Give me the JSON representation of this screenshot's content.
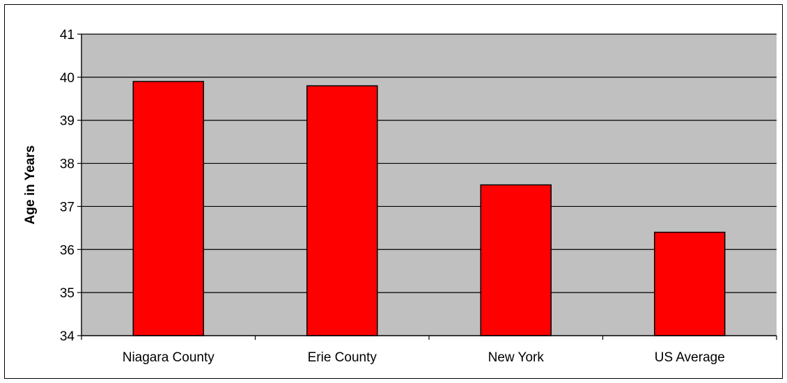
{
  "chart_data": {
    "type": "bar",
    "title": "",
    "xlabel": "",
    "ylabel": "Age in Years",
    "categories": [
      "Niagara County",
      "Erie County",
      "New York",
      "US Average"
    ],
    "values": [
      39.9,
      39.8,
      37.5,
      36.4
    ],
    "ylim": [
      34,
      41
    ],
    "yticks": [
      "34",
      "35",
      "36",
      "37",
      "38",
      "39",
      "40",
      "41"
    ],
    "grid": "horizontal",
    "legend": "none",
    "colors": {
      "bar_fill": "#ff0000",
      "bar_stroke": "#000000",
      "plot_background": "#c0c0c0",
      "gridline": "#000000"
    }
  }
}
